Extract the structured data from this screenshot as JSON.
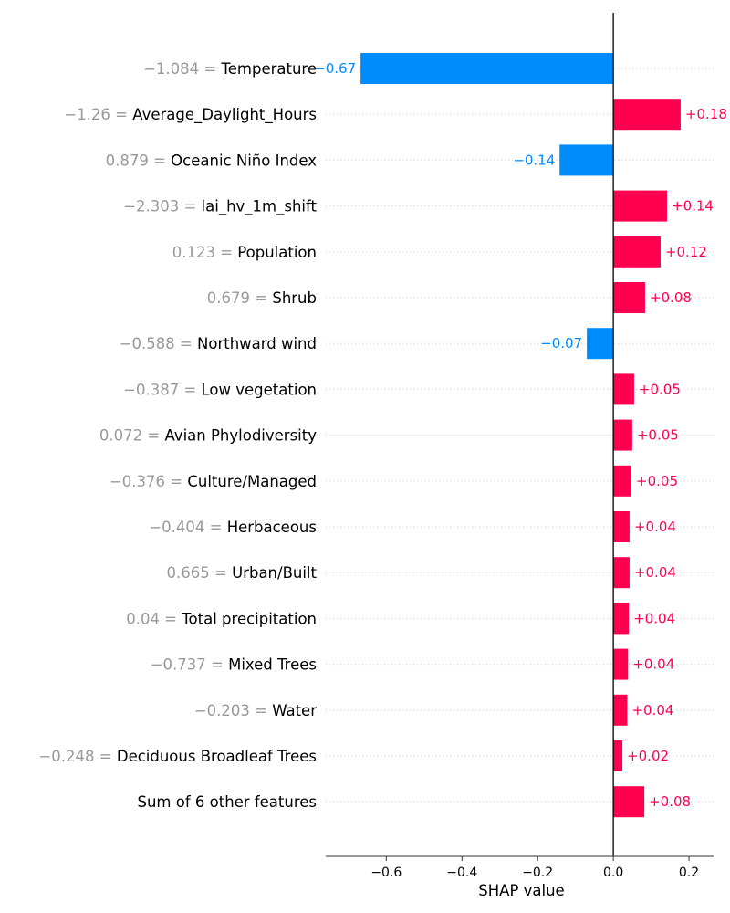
{
  "chart_data": {
    "type": "bar",
    "orientation": "horizontal",
    "xlabel": "SHAP value",
    "xlim": [
      -0.76,
      0.265
    ],
    "xticks": [
      {
        "value": -0.6,
        "label": "−0.6"
      },
      {
        "value": -0.4,
        "label": "−0.4"
      },
      {
        "value": -0.2,
        "label": "−0.2"
      },
      {
        "value": 0.0,
        "label": "0.0"
      },
      {
        "value": 0.2,
        "label": "0.2"
      }
    ],
    "colors": {
      "positive": "#ff0051",
      "negative": "#008bfb",
      "feature_value": "#999999"
    },
    "features": [
      {
        "value_text": "−1.084",
        "name": "Temperature",
        "shap": -0.668,
        "label": "−0.67"
      },
      {
        "value_text": "−1.26",
        "name": "Average_Daylight_Hours",
        "shap": 0.178,
        "label": "+0.18"
      },
      {
        "value_text": "0.879",
        "name": "Oceanic Niño Index",
        "shap": -0.142,
        "label": "−0.14"
      },
      {
        "value_text": "−2.303",
        "name": "lai_hv_1m_shift",
        "shap": 0.142,
        "label": "+0.14"
      },
      {
        "value_text": "0.123",
        "name": "Population",
        "shap": 0.125,
        "label": "+0.12"
      },
      {
        "value_text": "0.679",
        "name": "Shrub",
        "shap": 0.084,
        "label": "+0.08"
      },
      {
        "value_text": "−0.588",
        "name": "Northward wind",
        "shap": -0.07,
        "label": "−0.07"
      },
      {
        "value_text": "−0.387",
        "name": "Low vegetation",
        "shap": 0.055,
        "label": "+0.05"
      },
      {
        "value_text": "0.072",
        "name": "Avian Phylodiversity",
        "shap": 0.05,
        "label": "+0.05"
      },
      {
        "value_text": "−0.376",
        "name": "Culture/Managed",
        "shap": 0.048,
        "label": "+0.05"
      },
      {
        "value_text": "−0.404",
        "name": "Herbaceous",
        "shap": 0.043,
        "label": "+0.04"
      },
      {
        "value_text": "0.665",
        "name": "Urban/Built",
        "shap": 0.043,
        "label": "+0.04"
      },
      {
        "value_text": "0.04",
        "name": "Total precipitation",
        "shap": 0.041,
        "label": "+0.04"
      },
      {
        "value_text": "−0.737",
        "name": "Mixed Trees",
        "shap": 0.039,
        "label": "+0.04"
      },
      {
        "value_text": "−0.203",
        "name": "Water",
        "shap": 0.037,
        "label": "+0.04"
      },
      {
        "value_text": "−0.248",
        "name": "Deciduous Broadleaf Trees",
        "shap": 0.024,
        "label": "+0.02"
      },
      {
        "value_text": "",
        "name": "Sum of 6 other features",
        "shap": 0.082,
        "label": "+0.08"
      }
    ]
  }
}
